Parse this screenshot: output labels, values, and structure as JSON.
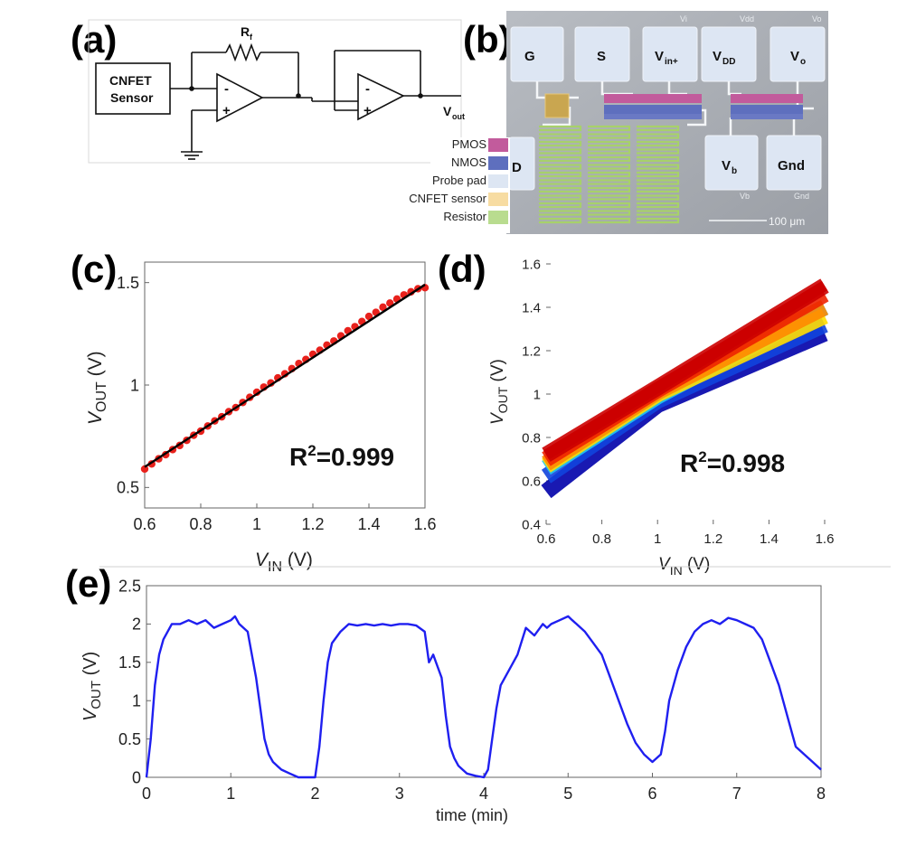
{
  "panels": {
    "a": {
      "label": "(a)",
      "sensor_line1": "CNFET",
      "sensor_line2": "Sensor",
      "rf_label": "R",
      "rf_sub": "f",
      "vout_label": "V",
      "vout_sub": "out",
      "minus": "-",
      "plus": "+"
    },
    "b": {
      "label": "(b)",
      "pads": {
        "g": "G",
        "s": "S",
        "vin": "V",
        "vin_sub": "in+",
        "vdd": "V",
        "vdd_sub": "DD",
        "vo": "V",
        "vo_sub": "o",
        "d": "D",
        "vb": "V",
        "vb_sub": "b",
        "gnd": "Gnd"
      },
      "faint": {
        "vi": "Vi",
        "vdd": "Vdd",
        "vo": "Vo",
        "vb": "Vb",
        "gnd": "Gnd"
      },
      "legend": [
        {
          "label": "PMOS",
          "color": "#c25b9c"
        },
        {
          "label": "NMOS",
          "color": "#5e6fbe"
        },
        {
          "label": "Probe pad",
          "color": "#dde6f3"
        },
        {
          "label": "CNFET sensor",
          "color": "#f7dca2"
        },
        {
          "label": "Resistor",
          "color": "#b9dc8f"
        }
      ],
      "scalebar": "100 μm"
    },
    "c": {
      "label": "(c)",
      "r2": "R",
      "r2_sup": "2",
      "r2_val": "=0.999",
      "ylabel": "V",
      "ylabel_sub": "OUT",
      "ylabel_unit": " (V)",
      "xlabel": "V",
      "xlabel_sub": "IN",
      "xlabel_unit": " (V)",
      "xticks": [
        "0.6",
        "0.8",
        "1",
        "1.2",
        "1.4",
        "1.6"
      ],
      "yticks": [
        "0.5",
        "1",
        "1.5"
      ]
    },
    "d": {
      "label": "(d)",
      "r2": "R",
      "r2_sup": "2",
      "r2_val": "=0.998",
      "ylabel": "V",
      "ylabel_sub": "OUT",
      "ylabel_unit": " (V)",
      "xlabel": "V",
      "xlabel_sub": "IN",
      "xlabel_unit": " (V)",
      "xticks": [
        "0.6",
        "0.8",
        "1",
        "1.2",
        "1.4",
        "1.6"
      ],
      "yticks": [
        "0.4",
        "0.6",
        "0.8",
        "1",
        "1.2",
        "1.4",
        "1.6"
      ]
    },
    "e": {
      "label": "(e)",
      "ylabel": "V",
      "ylabel_sub": "OUT",
      "ylabel_unit": " (V)",
      "xlabel": "time (min)",
      "xticks": [
        "0",
        "1",
        "2",
        "3",
        "4",
        "5",
        "6",
        "7",
        "8"
      ],
      "yticks": [
        "0",
        "0.5",
        "1",
        "1.5",
        "2",
        "2.5"
      ]
    }
  },
  "chart_data": [
    {
      "panel": "c",
      "type": "scatter",
      "xlim": [
        0.6,
        1.6
      ],
      "ylim": [
        0.4,
        1.6
      ],
      "grid": false,
      "series": [
        {
          "x": [
            0.6,
            0.625,
            0.65,
            0.675,
            0.7,
            0.725,
            0.75,
            0.775,
            0.8,
            0.825,
            0.85,
            0.875,
            0.9,
            0.925,
            0.95,
            0.975,
            1.0,
            1.025,
            1.05,
            1.075,
            1.1,
            1.125,
            1.15,
            1.175,
            1.2,
            1.225,
            1.25,
            1.275,
            1.3,
            1.325,
            1.35,
            1.375,
            1.4,
            1.425,
            1.45,
            1.475,
            1.5,
            1.525,
            1.55,
            1.575,
            1.6
          ],
          "y": [
            0.59,
            0.615,
            0.64,
            0.66,
            0.685,
            0.705,
            0.73,
            0.755,
            0.775,
            0.8,
            0.825,
            0.845,
            0.87,
            0.89,
            0.915,
            0.94,
            0.965,
            0.99,
            1.01,
            1.035,
            1.055,
            1.08,
            1.105,
            1.125,
            1.15,
            1.17,
            1.195,
            1.215,
            1.24,
            1.265,
            1.285,
            1.31,
            1.335,
            1.355,
            1.38,
            1.4,
            1.42,
            1.44,
            1.455,
            1.47,
            1.475
          ],
          "color": "#e8211c"
        },
        {
          "x": [
            0.6,
            1.6
          ],
          "y": [
            0.6,
            1.49
          ],
          "color": "#000000",
          "fit": true
        }
      ],
      "annotation": "R2=0.999"
    },
    {
      "panel": "d",
      "type": "line",
      "xlim": [
        0.6,
        1.6
      ],
      "ylim": [
        0.4,
        1.6
      ],
      "grid": false,
      "series": [
        {
          "x": [
            0.6,
            1.0,
            1.6
          ],
          "y": [
            0.72,
            1.03,
            1.5
          ],
          "color": "#cc0000"
        },
        {
          "x": [
            0.6,
            1.0,
            1.6
          ],
          "y": [
            0.7,
            1.02,
            1.46
          ],
          "color": "#ee2200"
        },
        {
          "x": [
            0.6,
            1.0,
            1.6
          ],
          "y": [
            0.68,
            1.01,
            1.4
          ],
          "color": "#ff8800"
        },
        {
          "x": [
            0.6,
            1.0,
            1.6
          ],
          "y": [
            0.67,
            1.0,
            1.36
          ],
          "color": "#ffdd00"
        },
        {
          "x": [
            0.6,
            1.0,
            1.6
          ],
          "y": [
            0.66,
            0.99,
            1.4
          ],
          "color": "#22c7f0"
        },
        {
          "x": [
            0.6,
            1.0,
            1.6
          ],
          "y": [
            0.62,
            0.97,
            1.32
          ],
          "color": "#1144dd"
        },
        {
          "x": [
            0.6,
            1.0,
            1.6
          ],
          "y": [
            0.55,
            0.95,
            1.28
          ],
          "color": "#0000aa"
        }
      ],
      "annotation": "R2=0.998"
    },
    {
      "panel": "e",
      "type": "line",
      "xlim": [
        0,
        8
      ],
      "ylim": [
        0,
        2.5
      ],
      "grid": false,
      "series": [
        {
          "x": [
            0,
            0.05,
            0.1,
            0.15,
            0.2,
            0.3,
            0.4,
            0.5,
            0.6,
            0.7,
            0.8,
            0.9,
            1.0,
            1.05,
            1.1,
            1.2,
            1.3,
            1.35,
            1.4,
            1.45,
            1.5,
            1.55,
            1.6,
            1.7,
            1.8,
            1.9,
            2.0,
            2.05,
            2.1,
            2.15,
            2.2,
            2.3,
            2.4,
            2.5,
            2.6,
            2.7,
            2.8,
            2.9,
            3.0,
            3.1,
            3.2,
            3.3,
            3.35,
            3.4,
            3.45,
            3.5,
            3.55,
            3.6,
            3.65,
            3.7,
            3.8,
            3.9,
            4.0,
            4.05,
            4.1,
            4.15,
            4.2,
            4.3,
            4.4,
            4.5,
            4.6,
            4.7,
            4.75,
            4.8,
            4.9,
            5.0,
            5.05,
            5.1,
            5.2,
            5.3,
            5.4,
            5.5,
            5.6,
            5.7,
            5.8,
            5.9,
            6.0,
            6.1,
            6.15,
            6.2,
            6.3,
            6.4,
            6.5,
            6.6,
            6.7,
            6.8,
            6.9,
            7.0,
            7.1,
            7.2,
            7.3,
            7.4,
            7.5,
            7.6,
            7.7,
            7.8,
            7.9,
            8.0
          ],
          "y": [
            0.0,
            0.5,
            1.2,
            1.6,
            1.8,
            2.0,
            2.0,
            2.05,
            2.0,
            2.05,
            1.95,
            2.0,
            2.05,
            2.1,
            2.0,
            1.9,
            1.3,
            0.9,
            0.5,
            0.3,
            0.2,
            0.15,
            0.1,
            0.05,
            0.0,
            0.0,
            0.0,
            0.4,
            1.0,
            1.5,
            1.75,
            1.9,
            2.0,
            1.98,
            2.0,
            1.98,
            2.0,
            1.98,
            2.0,
            2.0,
            1.98,
            1.9,
            1.5,
            1.6,
            1.45,
            1.3,
            0.8,
            0.4,
            0.25,
            0.15,
            0.05,
            0.02,
            0.0,
            0.1,
            0.5,
            0.9,
            1.2,
            1.4,
            1.6,
            1.95,
            1.85,
            2.0,
            1.95,
            2.0,
            2.05,
            2.1,
            2.05,
            2.0,
            1.9,
            1.75,
            1.6,
            1.3,
            1.0,
            0.7,
            0.45,
            0.3,
            0.2,
            0.3,
            0.6,
            1.0,
            1.4,
            1.7,
            1.9,
            2.0,
            2.05,
            2.0,
            2.08,
            2.05,
            2.0,
            1.95,
            1.8,
            1.5,
            1.2,
            0.8,
            0.4,
            0.3,
            0.2,
            0.1
          ],
          "color": "#1f1ff0"
        }
      ]
    }
  ]
}
